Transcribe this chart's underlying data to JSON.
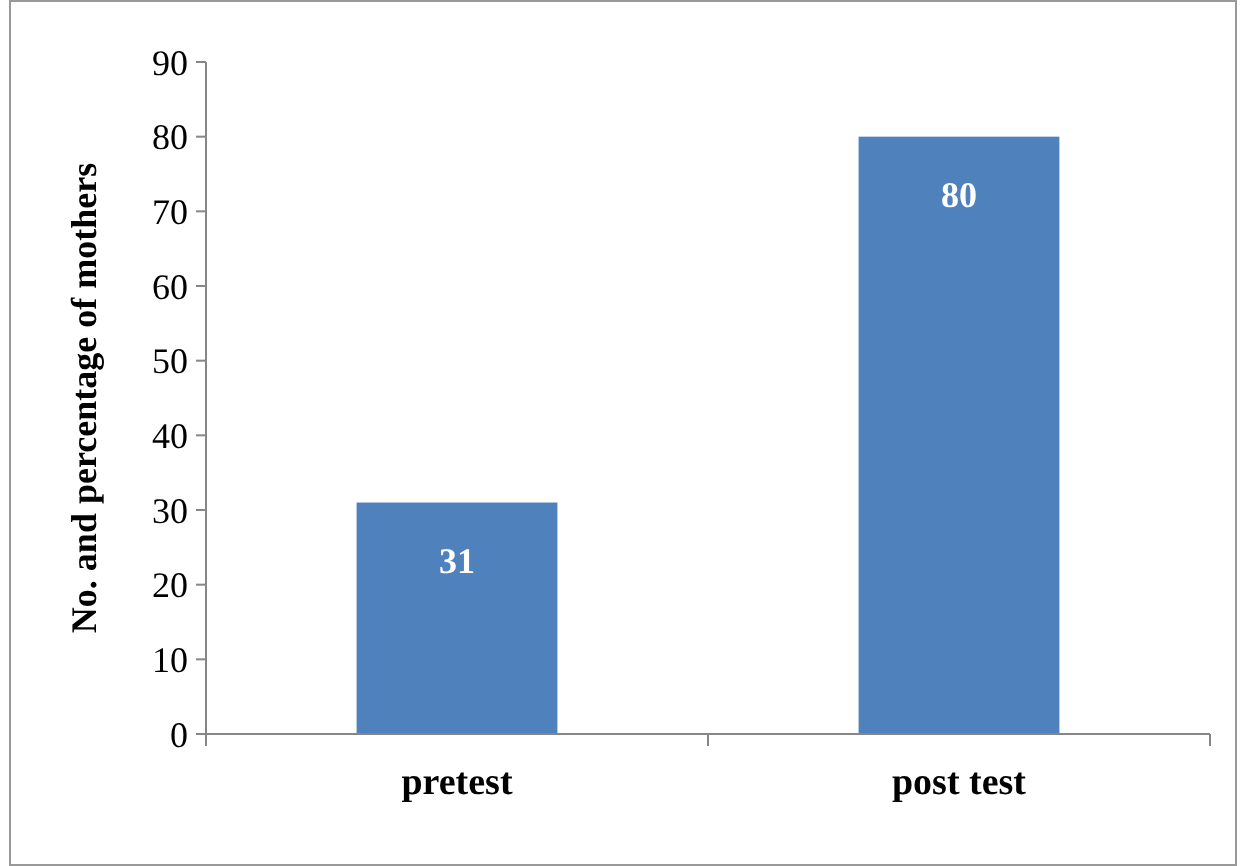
{
  "chart_data": {
    "type": "bar",
    "ylabel": "No. and percentage of mothers",
    "categories": [
      "pretest",
      "post test"
    ],
    "values": [
      31,
      80
    ],
    "color": "#4f81bd",
    "ylim": [
      0,
      90
    ],
    "yticks": [
      0,
      10,
      20,
      30,
      40,
      50,
      60,
      70,
      80,
      90
    ],
    "data_labels": true,
    "grid": false
  }
}
